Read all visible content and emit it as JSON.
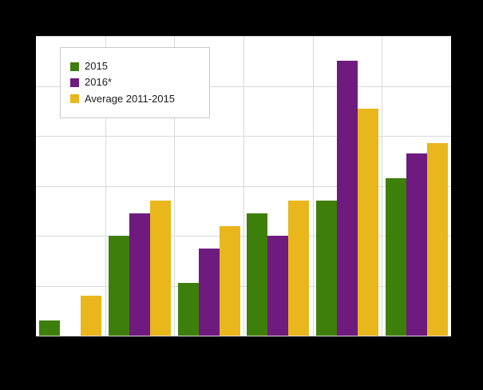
{
  "chart": {
    "background_color": "#000000",
    "plot_background_color": "#ffffff",
    "gridline_color": "#d9d9d9"
  },
  "chart_data": {
    "type": "bar",
    "title": "",
    "xlabel": "",
    "ylabel": "",
    "categories": [
      "",
      "",
      "",
      "",
      "",
      ""
    ],
    "ylim": [
      0,
      60
    ],
    "grid": true,
    "legend_position": "top-left-inside",
    "series": [
      {
        "name": "2015",
        "color": "#3e7f0b",
        "values": [
          3,
          20,
          10.5,
          24.5,
          27,
          31.5
        ]
      },
      {
        "name": "2016*",
        "color": "#6e1a7e",
        "values": [
          0,
          24.5,
          17.5,
          20,
          55,
          36.5
        ]
      },
      {
        "name": "Average 2011-2015",
        "color": "#e9b61c",
        "values": [
          8,
          27,
          22,
          27,
          45.5,
          38.5
        ]
      }
    ]
  },
  "legend": {
    "items": [
      {
        "label": "2015"
      },
      {
        "label": "2016*"
      },
      {
        "label": "Average 2011-2015"
      }
    ]
  }
}
